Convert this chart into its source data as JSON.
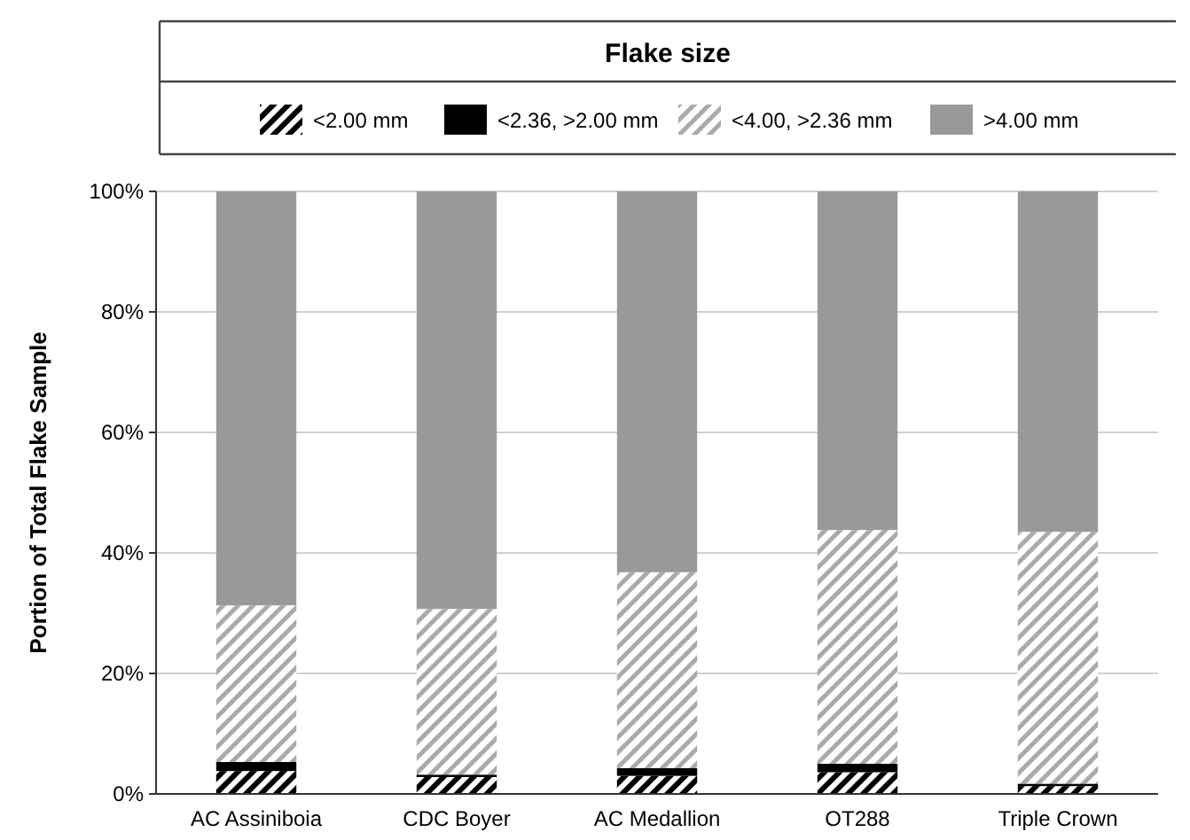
{
  "chart_data": {
    "type": "bar",
    "stacked": true,
    "legend_title": "Flake size",
    "legend": "top",
    "ylabel": "Portion of Total Flake Sample",
    "categories": [
      "AC Assiniboia",
      "CDC Boyer",
      "AC Medallion",
      "OT288",
      "Triple Crown"
    ],
    "series": [
      {
        "name": "<2.00 mm",
        "color": "#000000",
        "values": [
          3.8,
          2.8,
          3.0,
          3.6,
          1.3
        ]
      },
      {
        "name": "<2.36, >2.00 mm",
        "color": "#000000",
        "values": [
          1.5,
          0.4,
          1.3,
          1.4,
          0.4
        ]
      },
      {
        "name": "<4.00, >2.36 mm",
        "color": "#aaaaaa",
        "values": [
          26.0,
          27.5,
          32.5,
          38.8,
          41.8
        ]
      },
      {
        "name": ">4.00 mm",
        "color": "#999999",
        "values": [
          68.7,
          69.3,
          63.2,
          56.2,
          56.5
        ]
      }
    ],
    "ylim": [
      0,
      100
    ],
    "yticks": [
      {
        "value": 0,
        "label": "0%"
      },
      {
        "value": 20,
        "label": "20%"
      },
      {
        "value": 40,
        "label": "40%"
      },
      {
        "value": 60,
        "label": "60%"
      },
      {
        "value": 80,
        "label": "80%"
      },
      {
        "value": 100,
        "label": "100%"
      }
    ],
    "grid": "y"
  }
}
